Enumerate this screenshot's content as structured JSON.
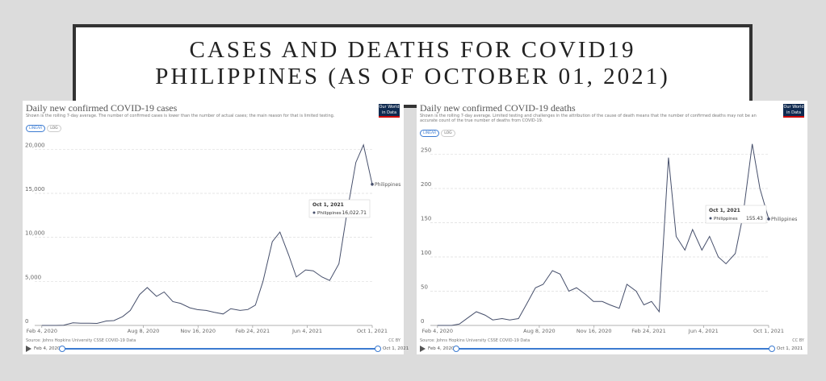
{
  "page_title": {
    "lines": [
      "CASES AND DEATHS FOR COVID19",
      "PHILIPPINES (AS OF OCTOBER 01, 2021)"
    ]
  },
  "chart_data": [
    {
      "type": "line",
      "title": "Daily new confirmed COVID-19 cases",
      "subtitle": "Shown is the rolling 7-day average. The number of confirmed cases is lower than the number of actual cases; the main reason for that is limited testing.",
      "scale_buttons": [
        "LINEAR",
        "LOG"
      ],
      "log_scale": false,
      "logo": [
        "Our World",
        "in Data"
      ],
      "source": "Source: Johns Hopkins University CSSE COVID-19 Data",
      "license": "CC BY",
      "x": [
        "2020-02-04",
        "2020-03-01",
        "2020-03-15",
        "2020-04-01",
        "2020-04-15",
        "2020-05-01",
        "2020-05-15",
        "2020-06-01",
        "2020-06-15",
        "2020-07-01",
        "2020-07-15",
        "2020-08-01",
        "2020-08-15",
        "2020-09-01",
        "2020-09-15",
        "2020-10-01",
        "2020-10-15",
        "2020-11-01",
        "2020-11-15",
        "2020-12-01",
        "2020-12-15",
        "2021-01-01",
        "2021-01-15",
        "2021-02-01",
        "2021-02-15",
        "2021-03-01",
        "2021-03-15",
        "2021-04-01",
        "2021-04-15",
        "2021-05-01",
        "2021-05-15",
        "2021-06-01",
        "2021-06-15",
        "2021-07-01",
        "2021-07-15",
        "2021-08-01",
        "2021-08-15",
        "2021-09-01",
        "2021-09-15",
        "2021-10-01"
      ],
      "series": [
        {
          "name": "Philippines",
          "color": "#464f6b",
          "values": [
            0,
            0,
            20,
            300,
            250,
            250,
            230,
            500,
            550,
            1000,
            1700,
            3500,
            4300,
            3300,
            3800,
            2700,
            2500,
            2000,
            1800,
            1700,
            1500,
            1300,
            1900,
            1700,
            1800,
            2300,
            5000,
            9500,
            10600,
            8000,
            5500,
            6300,
            6200,
            5500,
            5100,
            7000,
            12500,
            18500,
            20500,
            16022.71
          ],
          "value_labels": [
            null,
            null,
            null,
            null,
            null,
            null,
            null,
            null,
            null,
            null,
            null,
            null,
            null,
            null,
            null,
            null,
            null,
            null,
            null,
            null,
            null,
            null,
            null,
            null,
            null,
            null,
            null,
            null,
            null,
            null,
            null,
            null,
            null,
            null,
            null,
            null,
            null,
            null,
            null,
            "16,022.71"
          ]
        }
      ],
      "xlim": [
        "2020-01-22",
        "2021-10-01"
      ],
      "xticks": [
        {
          "value": "2020-02-04",
          "label": "Feb 4, 2020"
        },
        {
          "value": "2020-08-08",
          "label": "Aug 8, 2020"
        },
        {
          "value": "2020-11-16",
          "label": "Nov 16, 2020"
        },
        {
          "value": "2021-02-24",
          "label": "Feb 24, 2021"
        },
        {
          "value": "2021-06-04",
          "label": "Jun 4, 2021"
        },
        {
          "value": "2021-10-01",
          "label": "Oct 1, 2021"
        }
      ],
      "ylim": [
        0,
        21400
      ],
      "yticks": [
        0,
        {
          "value": 5000,
          "label": "5,000"
        },
        {
          "value": 10000,
          "label": "10,000"
        },
        {
          "value": 15000,
          "label": "15,000"
        },
        {
          "value": 20000,
          "label": "20,000"
        }
      ],
      "grid": true
    },
    {
      "type": "line",
      "title": "Daily new confirmed COVID-19 deaths",
      "subtitle": "Shown is the rolling 7-day average. Limited testing and challenges in the attribution of the cause of death means that the number of confirmed deaths may not be an accurate count of the true number of deaths from COVID-19.",
      "scale_buttons": [
        "LINEAR",
        "LOG"
      ],
      "log_scale": false,
      "logo": [
        "Our World",
        "in Data"
      ],
      "source": "Source: Johns Hopkins University CSSE COVID-19 Data",
      "license": "CC BY",
      "x": [
        "2020-02-04",
        "2020-03-01",
        "2020-03-15",
        "2020-04-01",
        "2020-04-15",
        "2020-05-01",
        "2020-05-15",
        "2020-06-01",
        "2020-06-15",
        "2020-07-01",
        "2020-07-15",
        "2020-08-01",
        "2020-08-15",
        "2020-09-01",
        "2020-09-15",
        "2020-10-01",
        "2020-10-15",
        "2020-11-01",
        "2020-11-15",
        "2020-12-01",
        "2020-12-15",
        "2021-01-01",
        "2021-01-15",
        "2021-02-01",
        "2021-02-15",
        "2021-03-01",
        "2021-03-15",
        "2021-04-01",
        "2021-04-15",
        "2021-05-01",
        "2021-05-15",
        "2021-06-01",
        "2021-06-15",
        "2021-07-01",
        "2021-07-15",
        "2021-08-01",
        "2021-08-15",
        "2021-09-01",
        "2021-09-15",
        "2021-10-01"
      ],
      "series": [
        {
          "name": "Philippines",
          "color": "#464f6b",
          "values": [
            0,
            0,
            2,
            12,
            20,
            15,
            8,
            10,
            8,
            10,
            30,
            55,
            60,
            80,
            75,
            50,
            55,
            45,
            35,
            35,
            30,
            25,
            60,
            50,
            30,
            35,
            20,
            245,
            130,
            110,
            140,
            110,
            130,
            100,
            90,
            105,
            160,
            265,
            200,
            155.43
          ]
        }
      ],
      "xlim": [
        "2020-01-22",
        "2021-10-01"
      ],
      "xticks": [
        {
          "value": "2020-02-04",
          "label": "Feb 4, 2020"
        },
        {
          "value": "2020-08-08",
          "label": "Aug 8, 2020"
        },
        {
          "value": "2020-11-16",
          "label": "Nov 16, 2020"
        },
        {
          "value": "2021-02-24",
          "label": "Feb 24, 2021"
        },
        {
          "value": "2021-06-04",
          "label": "Jun 4, 2021"
        },
        {
          "value": "2021-10-01",
          "label": "Oct 1, 2021"
        }
      ],
      "ylim": [
        0,
        267
      ],
      "yticks": [
        0,
        50,
        100,
        150,
        200,
        250
      ],
      "grid": true
    }
  ]
}
